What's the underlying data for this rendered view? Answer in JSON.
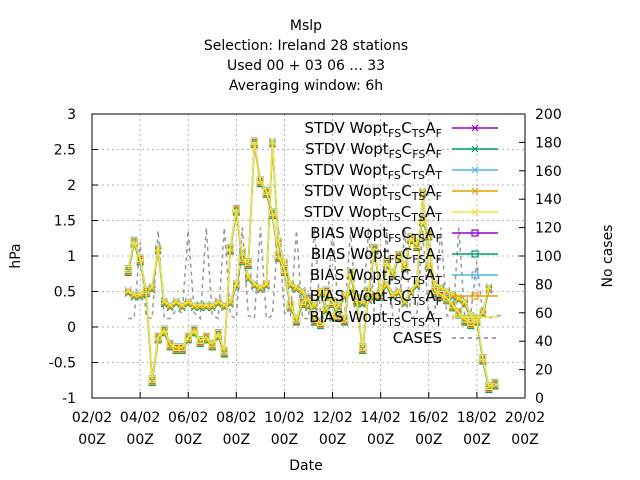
{
  "chart_data": {
    "type": "line",
    "title_lines": [
      "Mslp",
      "Selection: Ireland      28 stations",
      "Used  00 + 03 06 ... 33",
      "Averaging window:  6h"
    ],
    "xlabel": "Date",
    "ylabel": "hPa",
    "y2label": "No cases",
    "ylim": [
      -1,
      3
    ],
    "y2lim": [
      0,
      200
    ],
    "y_ticks": [
      -1,
      -0.5,
      0,
      0.5,
      1,
      1.5,
      2,
      2.5,
      3
    ],
    "y2_ticks": [
      0,
      20,
      40,
      60,
      80,
      100,
      120,
      140,
      160,
      180,
      200
    ],
    "x_ticks": [
      {
        "day": 2,
        "top": "02/02",
        "bottom": "00Z"
      },
      {
        "day": 4,
        "top": "04/02",
        "bottom": "00Z"
      },
      {
        "day": 6,
        "top": "06/02",
        "bottom": "00Z"
      },
      {
        "day": 8,
        "top": "08/02",
        "bottom": "00Z"
      },
      {
        "day": 10,
        "top": "10/02",
        "bottom": "00Z"
      },
      {
        "day": 12,
        "top": "12/02",
        "bottom": "00Z"
      },
      {
        "day": 14,
        "top": "14/02",
        "bottom": "00Z"
      },
      {
        "day": 16,
        "top": "16/02",
        "bottom": "00Z"
      },
      {
        "day": 18,
        "top": "18/02",
        "bottom": "00Z"
      },
      {
        "day": 20,
        "top": "20/02",
        "bottom": "00Z"
      }
    ],
    "xlim": [
      2,
      20
    ],
    "grid": true,
    "legend_position": "top-right",
    "legend": [
      {
        "pre": "STDV Wopt",
        "s1": "FS",
        "mid": "C",
        "s2": "TS",
        "end": "A",
        "s3": "F",
        "color": "#9400d3",
        "marker": "x"
      },
      {
        "pre": "STDV Wopt",
        "s1": "FS",
        "mid": "C",
        "s2": "FS",
        "end": "A",
        "s3": "F",
        "color": "#009e73",
        "marker": "x"
      },
      {
        "pre": "STDV Wopt",
        "s1": "FS",
        "mid": "C",
        "s2": "TS",
        "end": "A",
        "s3": "T",
        "color": "#56b4e9",
        "marker": "x"
      },
      {
        "pre": "STDV Wopt",
        "s1": "TS",
        "mid": "C",
        "s2": "TS",
        "end": "A",
        "s3": "F",
        "color": "#e69f00",
        "marker": "x"
      },
      {
        "pre": "STDV Wopt",
        "s1": "TS",
        "mid": "C",
        "s2": "TS",
        "end": "A",
        "s3": "T",
        "color": "#f0e442",
        "marker": "x"
      },
      {
        "pre": "BIAS Wopt",
        "s1": "FS",
        "mid": "C",
        "s2": "TS",
        "end": "A",
        "s3": "F",
        "color": "#9400d3",
        "marker": "sq"
      },
      {
        "pre": "BIAS Wopt",
        "s1": "FS",
        "mid": "C",
        "s2": "FS",
        "end": "A",
        "s3": "F",
        "color": "#009e73",
        "marker": "sq"
      },
      {
        "pre": "BIAS Wopt",
        "s1": "FS",
        "mid": "C",
        "s2": "TS",
        "end": "A",
        "s3": "T",
        "color": "#56b4e9",
        "marker": "sq"
      },
      {
        "pre": "BIAS Wopt",
        "s1": "TS",
        "mid": "C",
        "s2": "TS",
        "end": "A",
        "s3": "F",
        "color": "#e69f00",
        "marker": "sq"
      },
      {
        "pre": "BIAS Wopt",
        "s1": "TS",
        "mid": "C",
        "s2": "TS",
        "end": "A",
        "s3": "T",
        "color": "#f0e442",
        "marker": "sq"
      },
      {
        "pre": "CASES",
        "s1": "",
        "mid": "",
        "s2": "",
        "end": "",
        "s3": "",
        "color": "#888888",
        "marker": "dash"
      }
    ],
    "stdv": {
      "x": [
        3.5,
        3.75,
        4.0,
        4.25,
        4.5,
        4.75,
        5.0,
        5.25,
        5.5,
        5.75,
        6.0,
        6.25,
        6.5,
        6.75,
        7.0,
        7.25,
        7.5,
        7.75,
        8.0,
        8.25,
        8.5,
        8.75,
        9.0,
        9.25,
        9.5,
        9.75,
        10.0,
        10.25,
        10.5,
        10.75,
        11.0,
        11.25,
        11.5,
        11.75,
        12.0,
        12.25,
        12.5,
        12.75,
        13.0,
        13.25,
        13.5,
        13.75,
        14.0,
        14.25,
        14.5,
        14.75,
        15.0,
        15.25,
        15.5,
        15.75,
        16.0,
        16.25,
        16.5,
        16.75,
        17.0,
        17.25,
        17.5,
        17.75,
        18.0,
        18.25,
        18.5
      ],
      "y": [
        0.5,
        0.45,
        0.45,
        0.5,
        0.55,
        1.1,
        0.35,
        0.3,
        0.35,
        0.3,
        0.35,
        0.3,
        0.3,
        0.3,
        0.3,
        0.35,
        0.3,
        0.35,
        0.6,
        1.05,
        0.7,
        0.6,
        0.55,
        0.6,
        2.6,
        1.2,
        0.9,
        0.6,
        0.55,
        0.5,
        0.3,
        0.3,
        0.5,
        0.25,
        0.15,
        0.3,
        0.45,
        0.5,
        0.35,
        0.35,
        0.4,
        0.45,
        0.5,
        0.6,
        0.45,
        0.5,
        0.35,
        0.5,
        0.6,
        1.9,
        0.85,
        0.6,
        0.55,
        0.5,
        0.45,
        0.4,
        0.35,
        0.15,
        0.1,
        0.2,
        0.55
      ],
      "series_names": [
        "STDV FS C TS A F",
        "STDV FS C FS A F",
        "STDV FS C TS A T",
        "STDV TS C TS A F",
        "STDV TS C TS A T"
      ]
    },
    "bias": {
      "x": [
        3.5,
        3.75,
        4.0,
        4.25,
        4.5,
        4.75,
        5.0,
        5.25,
        5.5,
        5.75,
        6.0,
        6.25,
        6.5,
        6.75,
        7.0,
        7.25,
        7.5,
        7.75,
        8.0,
        8.25,
        8.5,
        8.75,
        9.0,
        9.25,
        9.5,
        9.75,
        10.0,
        10.25,
        10.5,
        10.75,
        11.0,
        11.25,
        11.5,
        11.75,
        12.0,
        12.25,
        12.5,
        12.75,
        13.0,
        13.25,
        13.5,
        13.75,
        14.0,
        14.25,
        14.5,
        14.75,
        15.0,
        15.25,
        15.5,
        15.75,
        16.0,
        16.25,
        16.5,
        16.75,
        17.0,
        17.25,
        17.5,
        17.75,
        18.0,
        18.25,
        18.5,
        18.75
      ],
      "y": [
        0.8,
        1.2,
        0.95,
        0.5,
        -0.75,
        -0.15,
        -0.05,
        -0.25,
        -0.3,
        -0.3,
        -0.15,
        -0.05,
        -0.2,
        -0.15,
        -0.25,
        -0.1,
        -0.35,
        1.1,
        1.65,
        0.95,
        0.9,
        2.6,
        2.05,
        1.9,
        1.6,
        1.0,
        0.8,
        0.3,
        0.1,
        0.35,
        0.4,
        0.1,
        0.05,
        0.5,
        0.35,
        0.15,
        0.1,
        0.75,
        0.4,
        -0.3,
        0.5,
        1.1,
        0.45,
        0.9,
        0.75,
        1.0,
        0.85,
        1.25,
        1.15,
        1.5,
        1.3,
        0.5,
        0.45,
        0.4,
        0.3,
        0.2,
        0.1,
        0.05,
        0.1,
        -0.45,
        -0.85,
        -0.8
      ],
      "series_names": [
        "BIAS FS C TS A F",
        "BIAS FS C FS A F",
        "BIAS FS C TS A T",
        "BIAS TS C TS A F",
        "BIAS TS C TS A T"
      ]
    },
    "series_offsets": [
      0.0,
      -0.03,
      0.02,
      -0.015,
      0.01
    ],
    "series_colors": [
      "#9400d3",
      "#009e73",
      "#56b4e9",
      "#e69f00",
      "#f0e442"
    ],
    "cases": {
      "x": [
        3.5,
        3.75,
        4.0,
        4.25,
        4.5,
        4.75,
        5.0,
        5.25,
        5.5,
        5.75,
        6.0,
        6.25,
        6.5,
        6.75,
        7.0,
        7.25,
        7.5,
        7.75,
        8.0,
        8.25,
        8.5,
        8.75,
        9.0,
        9.25,
        9.5,
        9.75,
        10.0,
        10.25,
        10.5,
        10.75,
        11.0,
        11.25,
        11.5,
        11.75,
        12.0,
        12.25,
        12.5,
        12.75,
        13.0,
        13.25,
        13.5,
        13.75,
        14.0,
        14.25,
        14.5,
        14.75,
        15.0,
        15.25,
        15.5,
        15.75,
        16.0,
        16.25,
        16.5,
        16.75,
        17.0,
        17.25,
        17.5,
        17.75,
        18.0,
        18.25,
        18.5,
        18.75,
        19.0
      ],
      "y": [
        56,
        56,
        110,
        57,
        56,
        118,
        56,
        56,
        62,
        60,
        118,
        60,
        56,
        120,
        58,
        56,
        120,
        58,
        56,
        120,
        58,
        56,
        120,
        56,
        58,
        120,
        60,
        58,
        118,
        56,
        56,
        120,
        58,
        56,
        120,
        56,
        58,
        118,
        56,
        58,
        120,
        56,
        60,
        118,
        58,
        56,
        120,
        56,
        58,
        118,
        56,
        60,
        120,
        58,
        56,
        120,
        56,
        60,
        96,
        58,
        56,
        58,
        58
      ]
    }
  }
}
